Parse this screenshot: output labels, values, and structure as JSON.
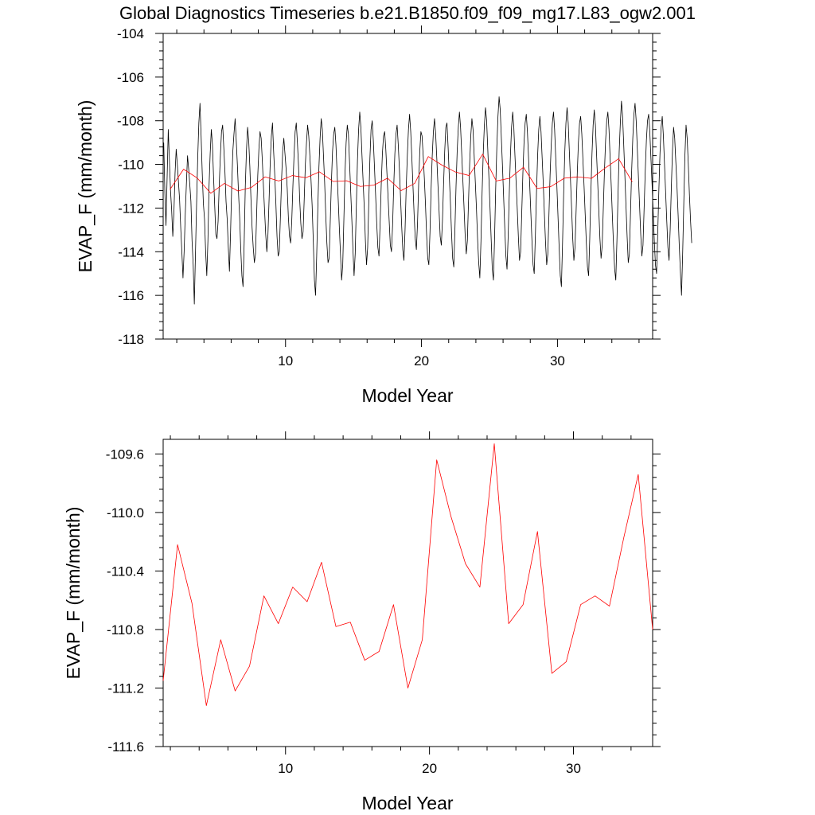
{
  "title": "Global Diagnostics Timeseries b.e21.B1850.f09_f09_mg17.L83_ogw2.001",
  "chart_data": [
    {
      "type": "line",
      "xlabel": "Model Year",
      "ylabel": "EVAP_F (mm/month)",
      "xlim": [
        1,
        37
      ],
      "ylim": [
        -118,
        -104
      ],
      "x_ticks": [
        10,
        20,
        30
      ],
      "y_ticks": [
        -118,
        -116,
        -114,
        -112,
        -110,
        -108,
        -106,
        -104
      ],
      "y_tick_labels": [
        "-118",
        "-116",
        "-114",
        "-112",
        "-110",
        "-108",
        "-106",
        "-104"
      ],
      "series": [
        {
          "color": "#000000",
          "x_start": 1.0417,
          "x_step": 0.08333,
          "values": [
            -109.0,
            -111.3,
            -112.8,
            -110.6,
            -108.4,
            -109.8,
            -111.2,
            -112.1,
            -113.3,
            -112.2,
            -110.4,
            -109.3,
            -110.0,
            -110.8,
            -111.6,
            -112.9,
            -114.0,
            -115.2,
            -114.0,
            -112.3,
            -110.9,
            -109.6,
            -110.2,
            -110.9,
            -111.7,
            -113.5,
            -114.6,
            -116.4,
            -114.1,
            -111.8,
            -109.7,
            -108.1,
            -107.2,
            -108.7,
            -110.4,
            -111.8,
            -112.5,
            -114.0,
            -115.1,
            -113.5,
            -111.0,
            -109.5,
            -108.4,
            -109.1,
            -110.6,
            -111.9,
            -113.2,
            -113.4,
            -112.6,
            -110.9,
            -109.6,
            -108.5,
            -108.2,
            -109.2,
            -110.3,
            -111.7,
            -112.5,
            -113.8,
            -114.9,
            -113.1,
            -111.0,
            -109.4,
            -108.6,
            -107.9,
            -108.9,
            -110.0,
            -111.3,
            -112.4,
            -113.9,
            -115.1,
            -115.6,
            -113.6,
            -111.0,
            -109.4,
            -108.3,
            -108.9,
            -110.1,
            -111.6,
            -112.9,
            -113.8,
            -114.5,
            -114.1,
            -112.3,
            -110.5,
            -109.3,
            -108.5,
            -108.8,
            -109.8,
            -111.0,
            -112.1,
            -113.2,
            -114.0,
            -113.2,
            -111.6,
            -109.9,
            -108.7,
            -108.1,
            -109.4,
            -110.5,
            -111.8,
            -113.3,
            -114.2,
            -114.0,
            -112.4,
            -110.7,
            -109.4,
            -108.8,
            -109.5,
            -110.2,
            -111.1,
            -112.4,
            -113.3,
            -113.6,
            -112.6,
            -111.0,
            -109.6,
            -108.5,
            -108.1,
            -109.0,
            -110.1,
            -111.6,
            -112.7,
            -113.4,
            -113.1,
            -111.6,
            -110.0,
            -109.0,
            -108.2,
            -108.7,
            -109.6,
            -110.7,
            -111.9,
            -113.5,
            -115.3,
            -116.0,
            -114.2,
            -112.0,
            -110.1,
            -108.8,
            -107.9,
            -108.4,
            -109.6,
            -110.8,
            -112.3,
            -113.6,
            -114.5,
            -114.3,
            -112.6,
            -110.8,
            -109.4,
            -108.6,
            -108.3,
            -109.1,
            -110.4,
            -111.6,
            -112.9,
            -114.1,
            -115.3,
            -114.6,
            -112.5,
            -110.4,
            -109.0,
            -108.2,
            -108.6,
            -109.9,
            -111.2,
            -112.5,
            -113.9,
            -115.1,
            -114.1,
            -111.9,
            -109.8,
            -108.4,
            -107.6,
            -108.3,
            -109.6,
            -110.8,
            -112.0,
            -113.5,
            -114.6,
            -113.8,
            -111.7,
            -109.7,
            -108.4,
            -108.0,
            -108.9,
            -110.1,
            -111.4,
            -112.7,
            -113.8,
            -114.2,
            -112.7,
            -110.9,
            -109.5,
            -108.7,
            -108.5,
            -109.3,
            -110.4,
            -111.5,
            -112.6,
            -113.7,
            -114.0,
            -112.8,
            -111.0,
            -109.5,
            -108.6,
            -108.2,
            -109.1,
            -110.2,
            -111.5,
            -112.8,
            -113.9,
            -114.4,
            -113.0,
            -111.1,
            -109.6,
            -108.4,
            -107.7,
            -108.5,
            -109.7,
            -111.0,
            -112.3,
            -113.4,
            -113.9,
            -112.7,
            -110.9,
            -109.4,
            -108.5,
            -108.7,
            -109.6,
            -110.6,
            -111.8,
            -113.2,
            -114.3,
            -114.6,
            -113.1,
            -111.1,
            -109.6,
            -108.5,
            -107.9,
            -108.6,
            -109.7,
            -110.9,
            -112.1,
            -113.3,
            -113.7,
            -112.6,
            -110.9,
            -109.4,
            -108.3,
            -108.1,
            -109.2,
            -110.5,
            -111.7,
            -113.1,
            -114.3,
            -114.7,
            -113.0,
            -111.0,
            -109.4,
            -108.3,
            -107.6,
            -108.3,
            -109.5,
            -110.7,
            -111.9,
            -113.2,
            -114.1,
            -113.5,
            -111.7,
            -110.0,
            -108.7,
            -107.9,
            -108.4,
            -109.6,
            -110.8,
            -112.0,
            -113.4,
            -114.5,
            -115.2,
            -113.5,
            -111.3,
            -109.5,
            -108.2,
            -107.4,
            -108.0,
            -109.3,
            -110.6,
            -112.0,
            -113.4,
            -114.8,
            -115.3,
            -113.4,
            -111.1,
            -109.2,
            -107.8,
            -106.9,
            -107.5,
            -108.8,
            -110.1,
            -111.5,
            -112.9,
            -114.2,
            -114.8,
            -113.3,
            -111.3,
            -109.6,
            -108.3,
            -107.6,
            -108.3,
            -109.6,
            -110.8,
            -112.0,
            -113.3,
            -114.4,
            -114.0,
            -112.2,
            -110.4,
            -109.0,
            -108.1,
            -107.7,
            -108.5,
            -109.7,
            -110.9,
            -112.2,
            -113.5,
            -114.6,
            -115.0,
            -113.3,
            -111.3,
            -109.6,
            -108.4,
            -107.8,
            -108.5,
            -109.7,
            -110.9,
            -112.3,
            -113.6,
            -114.6,
            -114.1,
            -112.3,
            -110.5,
            -109.1,
            -108.1,
            -107.6,
            -108.4,
            -109.7,
            -111.0,
            -112.4,
            -113.8,
            -115.1,
            -115.6,
            -113.6,
            -111.3,
            -109.4,
            -108.1,
            -107.4,
            -108.1,
            -109.4,
            -110.7,
            -112.0,
            -113.4,
            -114.4,
            -113.8,
            -112.1,
            -110.4,
            -109.0,
            -108.1,
            -107.8,
            -108.6,
            -109.8,
            -111.0,
            -112.3,
            -113.6,
            -114.7,
            -115.1,
            -113.4,
            -111.3,
            -109.5,
            -108.2,
            -107.5,
            -108.2,
            -109.5,
            -110.8,
            -112.1,
            -113.4,
            -114.3,
            -113.7,
            -112.0,
            -110.3,
            -108.9,
            -108.0,
            -107.6,
            -108.4,
            -109.7,
            -111.0,
            -112.4,
            -113.7,
            -114.8,
            -115.3,
            -113.5,
            -111.3,
            -109.4,
            -108.1,
            -107.1,
            -107.8,
            -109.1,
            -110.5,
            -111.9,
            -113.3,
            -114.5,
            -114.1,
            -112.2,
            -110.3,
            -108.8,
            -107.7,
            -107.2,
            -108.0,
            -109.3,
            -110.6,
            -111.9,
            -113.2,
            -114.2,
            -113.7,
            -112.0,
            -110.3,
            -108.9,
            -108.0,
            -107.7,
            -108.5,
            -109.7,
            -110.9,
            -112.2,
            -113.5,
            -114.6,
            -115.0,
            -113.2,
            -111.2,
            -109.5,
            -108.3,
            -107.8,
            -108.7,
            -110.0,
            -111.3,
            -112.6,
            -113.8,
            -114.4,
            -113.0,
            -111.1,
            -109.4,
            -108.3,
            -108.8,
            -109.9,
            -111.0,
            -112.3,
            -113.7,
            -114.9,
            -116.0,
            -114.1,
            -111.8,
            -109.6,
            -108.2,
            -108.8,
            -110.0,
            -111.4,
            -112.6,
            -113.6
          ]
        },
        {
          "color": "#ff0000",
          "x": [
            1.5,
            2.5,
            3.5,
            4.5,
            5.5,
            6.5,
            7.5,
            8.5,
            9.5,
            10.5,
            11.5,
            12.5,
            13.5,
            14.5,
            15.5,
            16.5,
            17.5,
            18.5,
            19.5,
            20.5,
            21.5,
            22.5,
            23.5,
            24.5,
            25.5,
            26.5,
            27.5,
            28.5,
            29.5,
            30.5,
            31.5,
            32.5,
            33.5,
            34.5,
            35.5
          ],
          "values": [
            -111.15,
            -110.22,
            -110.62,
            -111.32,
            -110.87,
            -111.22,
            -111.05,
            -110.57,
            -110.76,
            -110.51,
            -110.61,
            -110.34,
            -110.78,
            -110.75,
            -111.01,
            -110.95,
            -110.63,
            -111.2,
            -110.87,
            -109.64,
            -110.03,
            -110.35,
            -110.51,
            -109.53,
            -110.76,
            -110.63,
            -110.13,
            -111.1,
            -111.02,
            -110.63,
            -110.57,
            -110.64,
            -110.17,
            -109.74,
            -110.8
          ]
        }
      ]
    },
    {
      "type": "line",
      "xlabel": "Model Year",
      "ylabel": "EVAP_F (mm/month)",
      "xlim": [
        1.5,
        35.5
      ],
      "ylim": [
        -111.6,
        -109.5
      ],
      "x_ticks": [
        10,
        20,
        30
      ],
      "y_ticks": [
        -111.6,
        -111.2,
        -110.8,
        -110.4,
        -110.0,
        -109.6
      ],
      "y_tick_labels": [
        "-111.6",
        "-111.2",
        "-110.8",
        "-110.4",
        "-110.0",
        "-109.6"
      ],
      "series": [
        {
          "color": "#ff0000",
          "x": [
            1.5,
            2.5,
            3.5,
            4.5,
            5.5,
            6.5,
            7.5,
            8.5,
            9.5,
            10.5,
            11.5,
            12.5,
            13.5,
            14.5,
            15.5,
            16.5,
            17.5,
            18.5,
            19.5,
            20.5,
            21.5,
            22.5,
            23.5,
            24.5,
            25.5,
            26.5,
            27.5,
            28.5,
            29.5,
            30.5,
            31.5,
            32.5,
            33.5,
            34.5,
            35.5
          ],
          "values": [
            -111.15,
            -110.22,
            -110.62,
            -111.32,
            -110.87,
            -111.22,
            -111.05,
            -110.57,
            -110.76,
            -110.51,
            -110.61,
            -110.34,
            -110.78,
            -110.75,
            -111.01,
            -110.95,
            -110.63,
            -111.2,
            -110.87,
            -109.64,
            -110.03,
            -110.35,
            -110.51,
            -109.53,
            -110.76,
            -110.63,
            -110.13,
            -111.1,
            -111.02,
            -110.63,
            -110.57,
            -110.64,
            -110.17,
            -109.74,
            -110.8
          ]
        }
      ]
    }
  ]
}
